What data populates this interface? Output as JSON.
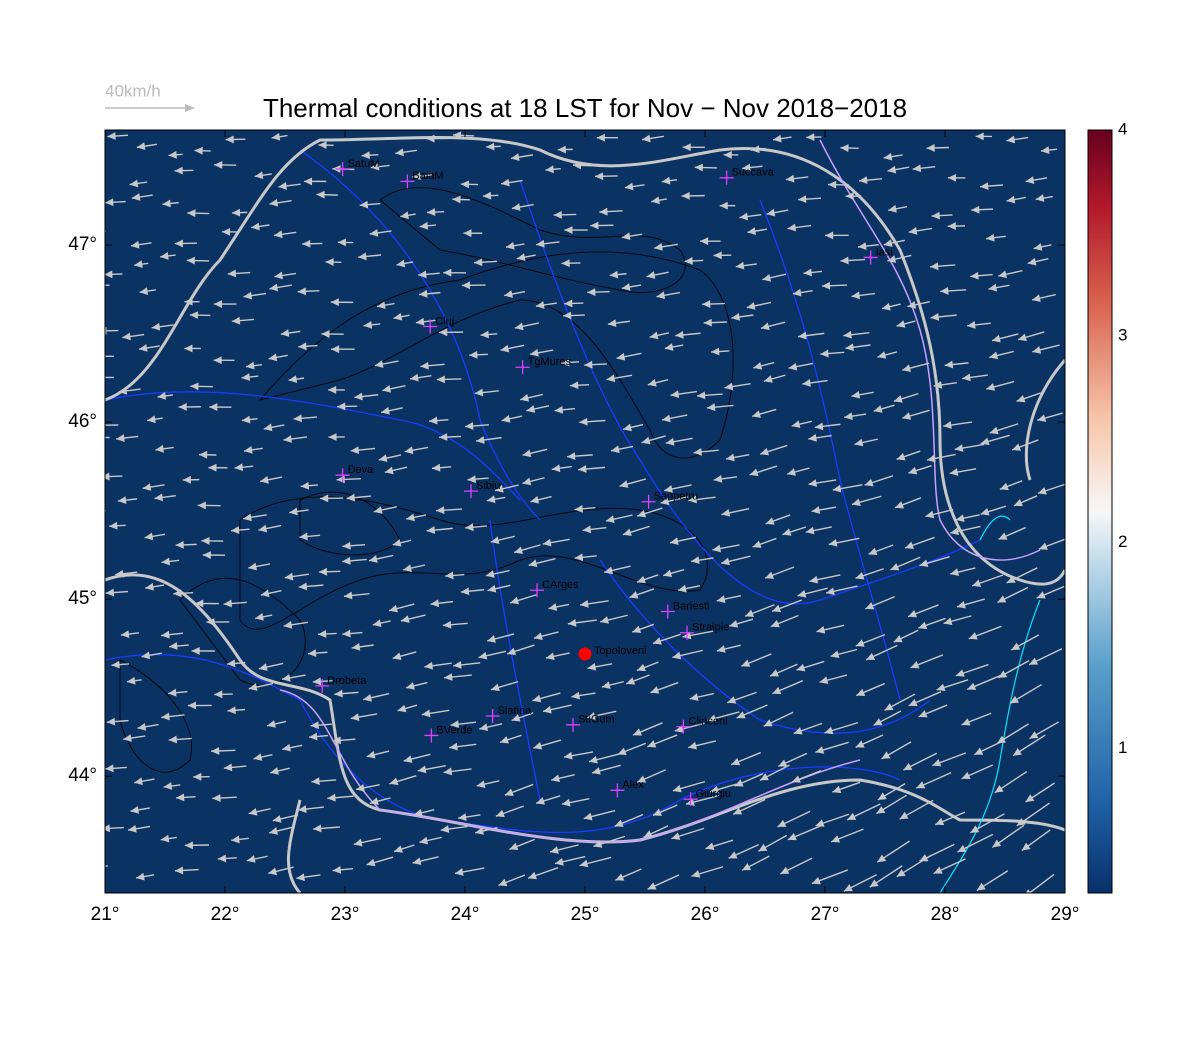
{
  "title": "Thermal conditions at 18 LST for Nov − Nov  2018−2018",
  "wind_legend": "40km/h",
  "map": {
    "xlim": [
      21,
      29
    ],
    "ylim": [
      43.34,
      47.65
    ],
    "xticks": [
      {
        "value": 21,
        "label": "21°"
      },
      {
        "value": 22,
        "label": "22°"
      },
      {
        "value": 23,
        "label": "23°"
      },
      {
        "value": 24,
        "label": "24°"
      },
      {
        "value": 25,
        "label": "25°"
      },
      {
        "value": 26,
        "label": "26°"
      },
      {
        "value": 27,
        "label": "27°"
      },
      {
        "value": 28,
        "label": "28°"
      },
      {
        "value": 29,
        "label": "29°"
      }
    ],
    "yticks": [
      {
        "value": 44,
        "label": "44°"
      },
      {
        "value": 45,
        "label": "45°"
      },
      {
        "value": 46,
        "label": "46°"
      },
      {
        "value": 47,
        "label": "47°"
      }
    ]
  },
  "colorbar": {
    "lim": [
      0.3,
      4.0
    ],
    "ticks": [
      1,
      2,
      3,
      4
    ]
  },
  "cities": [
    {
      "name": "SatuM",
      "lon": 22.98,
      "lat": 47.43
    },
    {
      "name": "BaiaM",
      "lon": 23.52,
      "lat": 47.36
    },
    {
      "name": "Succava",
      "lon": 26.18,
      "lat": 47.38
    },
    {
      "name": "Iasi",
      "lon": 27.38,
      "lat": 46.93
    },
    {
      "name": "Cluj",
      "lon": 23.71,
      "lat": 46.54
    },
    {
      "name": "TgMures",
      "lon": 24.48,
      "lat": 46.31
    },
    {
      "name": "Deva",
      "lon": 22.98,
      "lat": 45.7
    },
    {
      "name": "Sibiu",
      "lon": 24.05,
      "lat": 45.61
    },
    {
      "name": "Sanpetru",
      "lon": 25.53,
      "lat": 45.55
    },
    {
      "name": "CArges",
      "lon": 24.6,
      "lat": 45.05
    },
    {
      "name": "Bariesti",
      "lon": 25.69,
      "lat": 44.93
    },
    {
      "name": "Straipie",
      "lon": 25.85,
      "lat": 44.81
    },
    {
      "name": "Drobeta",
      "lon": 22.81,
      "lat": 44.51
    },
    {
      "name": "Slatina",
      "lon": 24.23,
      "lat": 44.34
    },
    {
      "name": "StiGum",
      "lon": 24.9,
      "lat": 44.29
    },
    {
      "name": "Clinceni",
      "lon": 25.82,
      "lat": 44.28
    },
    {
      "name": "BVerde",
      "lon": 23.72,
      "lat": 44.23
    },
    {
      "name": "Alex",
      "lon": 25.27,
      "lat": 43.92
    },
    {
      "name": "Giurgiu",
      "lon": 25.88,
      "lat": 43.87
    }
  ],
  "highlight": {
    "name": "Topoloveni",
    "lon": 25.0,
    "lat": 44.69,
    "color": "#ff0000"
  }
}
